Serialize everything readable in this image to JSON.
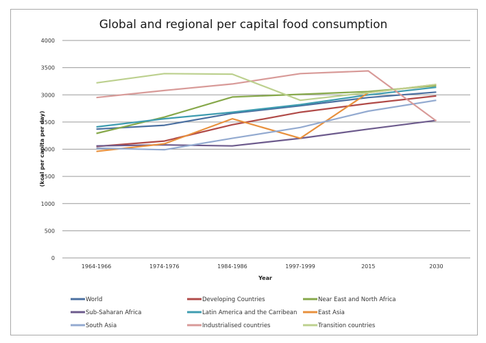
{
  "chart_data": {
    "type": "line",
    "title": "Global and regional per capital food consumption",
    "xlabel": "Year",
    "ylabel": "(kcal per capita per day)",
    "ylim": [
      0,
      4000
    ],
    "yticks": [
      0,
      500,
      1000,
      1500,
      2000,
      2500,
      3000,
      3500,
      4000
    ],
    "grid": true,
    "legend_position": "bottom",
    "categories": [
      "1964-1966",
      "1974-1976",
      "1984-1986",
      "1997-1999",
      "2015",
      "2030"
    ],
    "series": [
      {
        "name": "World",
        "color": "#4a6fa0",
        "values": [
          2370,
          2440,
          2660,
          2800,
          2950,
          3050
        ]
      },
      {
        "name": "Developing Countries",
        "color": "#b04a48",
        "values": [
          2050,
          2150,
          2450,
          2680,
          2840,
          2980
        ]
      },
      {
        "name": "Near East and North Africa",
        "color": "#86a84a",
        "values": [
          2290,
          2590,
          2960,
          3010,
          3060,
          3170
        ]
      },
      {
        "name": "Sub-Saharan Africa",
        "color": "#6c5a8c",
        "values": [
          2060,
          2080,
          2060,
          2200,
          2370,
          2530
        ]
      },
      {
        "name": "Latin America and the Carribean",
        "color": "#3e9cb0",
        "values": [
          2410,
          2560,
          2680,
          2820,
          3000,
          3140
        ]
      },
      {
        "name": "East Asia",
        "color": "#e8903c",
        "values": [
          1960,
          2100,
          2560,
          2200,
          3040,
          3190
        ]
      },
      {
        "name": "South Asia",
        "color": "#93aad0",
        "values": [
          2020,
          1990,
          2200,
          2400,
          2700,
          2900
        ]
      },
      {
        "name": "Industrialised countries",
        "color": "#d89a98",
        "values": [
          2950,
          3080,
          3200,
          3390,
          3440,
          2520
        ]
      },
      {
        "name": "Transition countries",
        "color": "#bcd08e",
        "values": [
          3220,
          3390,
          3380,
          2900,
          3040,
          3190
        ]
      }
    ]
  }
}
